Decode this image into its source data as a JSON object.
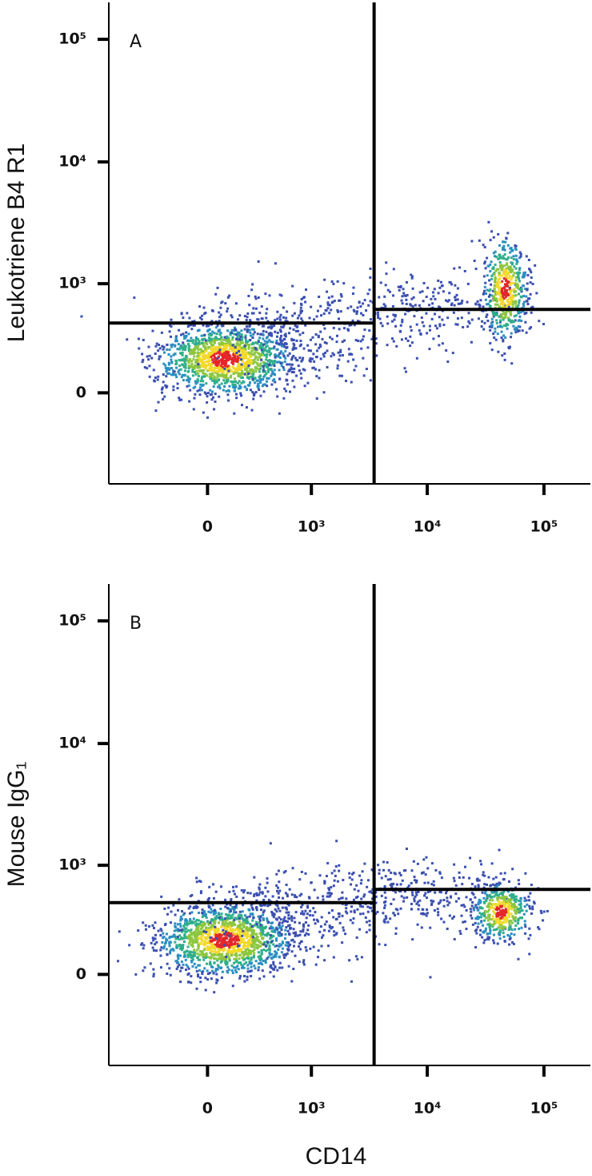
{
  "xlabel": "CD14",
  "chart_data": [
    {
      "type": "density",
      "panel_label": "A",
      "ylabel": "Leukotriene B4 R1",
      "scale": "biexponential",
      "xlim": [
        -900,
        250000
      ],
      "ylim": [
        -700,
        200000
      ],
      "xticks": [
        0,
        {
          "value": 1000,
          "label": "10³"
        },
        {
          "value": 10000,
          "label": "10⁴"
        },
        {
          "value": 100000,
          "label": "10⁵"
        }
      ],
      "yticks": [
        0,
        {
          "value": 1000,
          "label": "10³"
        },
        {
          "value": 10000,
          "label": "10⁴"
        },
        {
          "value": 100000,
          "label": "10⁵"
        }
      ],
      "gate_x": 3500,
      "gate_y_left": 450,
      "gate_y_right": 600
    },
    {
      "type": "density",
      "panel_label": "B",
      "ylabel": "Mouse IgG₁",
      "scale": "biexponential",
      "xlim": [
        -900,
        250000
      ],
      "ylim": [
        -700,
        200000
      ],
      "xticks": [
        0,
        {
          "value": 1000,
          "label": "10³"
        },
        {
          "value": 10000,
          "label": "10⁴"
        },
        {
          "value": 100000,
          "label": "10⁵"
        }
      ],
      "yticks": [
        0,
        {
          "value": 1000,
          "label": "10³"
        },
        {
          "value": 10000,
          "label": "10⁴"
        },
        {
          "value": 100000,
          "label": "10⁵"
        }
      ],
      "gate_x": 3500,
      "gate_y_left": 470,
      "gate_y_right": 620
    }
  ]
}
